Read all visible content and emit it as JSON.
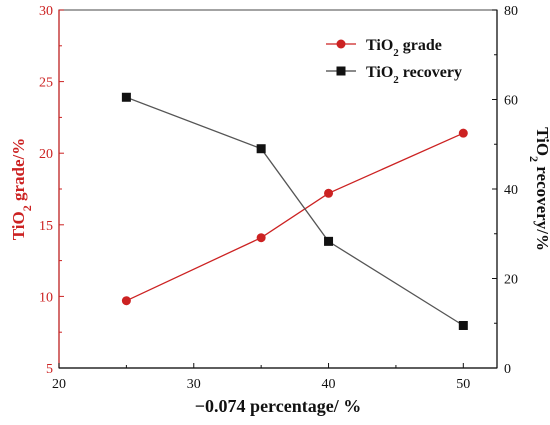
{
  "chart_data": {
    "type": "line",
    "x": [
      25,
      35,
      40,
      50
    ],
    "xlabel": "−0.074 percentage/ %",
    "xlim": [
      20,
      52.5
    ],
    "x_ticks": [
      "20",
      "30",
      "40",
      "50"
    ],
    "y_left": {
      "label_main": "TiO",
      "label_sub": "2",
      "label_rest": " grade/%",
      "lim": [
        5,
        30
      ],
      "ticks": [
        "5",
        "10",
        "15",
        "20",
        "25",
        "30"
      ],
      "color": "#cc2222"
    },
    "y_right": {
      "label_main": "TiO",
      "label_sub": "2",
      "label_rest": " recovery/%",
      "lim": [
        0,
        80
      ],
      "ticks": [
        "0",
        "20",
        "40",
        "60",
        "80"
      ],
      "color": "#111111"
    },
    "series": [
      {
        "name_main": "TiO",
        "name_sub": "2",
        "name_rest": " grade",
        "axis": "left",
        "marker": "circle",
        "color": "#cc2222",
        "values": [
          9.7,
          14.1,
          17.2,
          21.4
        ]
      },
      {
        "name_main": "TiO",
        "name_sub": "2",
        "name_rest": " recovery",
        "axis": "right",
        "marker": "square",
        "color": "#111111",
        "values": [
          60.5,
          49.0,
          28.3,
          9.5
        ]
      }
    ],
    "legend_position": "top-right",
    "grid": false
  }
}
